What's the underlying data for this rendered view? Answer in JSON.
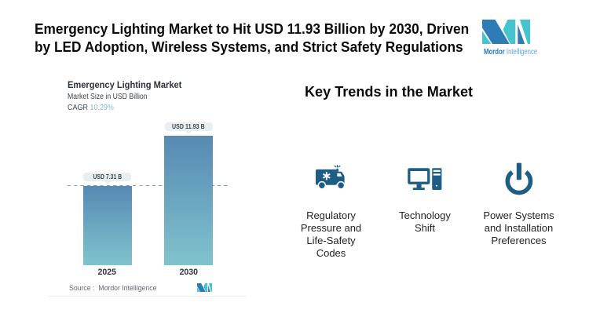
{
  "header": {
    "title": "Emergency Lighting Market to Hit USD 11.93 Billion by 2030, Driven\nby LED Adoption, Wireless Systems, and Strict Safety Regulations"
  },
  "logo": {
    "word_bold": "Mordor",
    "word_light": "Intelligence"
  },
  "chart": {
    "title": "Emergency Lighting Market",
    "subtitle": "Market Size in USD Billion",
    "cagr_label": "CAGR",
    "cagr_value": "10.29%",
    "source_label": "Source :",
    "source_name": "Mordor Intelligence"
  },
  "chart_data": {
    "type": "bar",
    "title": "Emergency Lighting Market",
    "ylabel": "Market Size in USD Billion",
    "cagr": "10.29%",
    "categories": [
      "2025",
      "2030"
    ],
    "values": [
      7.31,
      11.93
    ],
    "value_labels": [
      "USD 7.31 B",
      "USD 11.93 B"
    ],
    "unit": "USD Billion",
    "reference_line": 7.31,
    "ylim": [
      0,
      12
    ],
    "bar_gradient": [
      "#5789b4",
      "#80c3cd"
    ]
  },
  "trends": {
    "heading": "Key Trends in the Market",
    "items": [
      {
        "icon": "ambulance-icon",
        "label": "Regulatory\nPressure and\nLife-Safety\nCodes"
      },
      {
        "icon": "desktop-computer-icon",
        "label": "Technology\nShift"
      },
      {
        "icon": "power-button-icon",
        "label": "Power Systems\nand Installation\nPreferences"
      }
    ]
  },
  "colors": {
    "title_text": "#0b0b0b",
    "icon_blue": "#1e5d84",
    "logo_blue": "#2e7cb5",
    "logo_teal": "#46c4cd",
    "bar_top": "#5789b4",
    "bar_bottom": "#80c3cd",
    "dashed_line": "#6f9fc6",
    "cagr_value": "#8ab4d6",
    "pill_bg": "#e9eef1"
  }
}
